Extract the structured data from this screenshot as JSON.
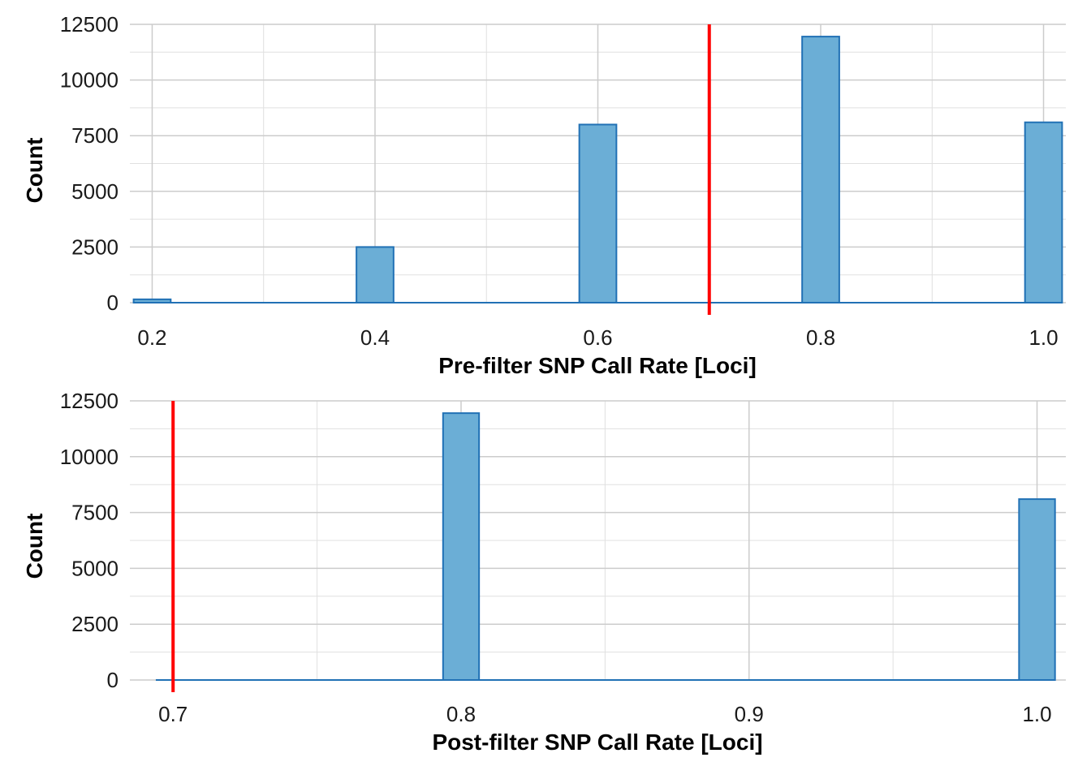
{
  "colors": {
    "bar_fill": "#6baed6",
    "bar_stroke": "#2171b5",
    "threshold": "#ff0000",
    "grid_major": "#cccccc",
    "grid_minor": "#e0e0e0"
  },
  "chart_data": [
    {
      "type": "bar",
      "xlabel": "Pre-filter SNP Call Rate [Loci]",
      "ylabel": "Count",
      "xlim": [
        0.18,
        1.02
      ],
      "ylim": [
        0,
        12500
      ],
      "x_ticks": [
        0.2,
        0.4,
        0.6,
        0.8,
        1.0
      ],
      "x_tick_labels": [
        "0.2",
        "0.4",
        "0.6",
        "0.8",
        "1.0"
      ],
      "y_ticks": [
        0,
        2500,
        5000,
        7500,
        10000,
        12500
      ],
      "y_tick_labels": [
        "0",
        "2500",
        "5000",
        "7500",
        "10000",
        "12500"
      ],
      "bin_width": 0.0333,
      "bins": [
        {
          "x": 0.2,
          "count": 150
        },
        {
          "x": 0.4,
          "count": 2500
        },
        {
          "x": 0.6,
          "count": 8000
        },
        {
          "x": 0.8,
          "count": 11950
        },
        {
          "x": 1.0,
          "count": 8100
        }
      ],
      "baseline": [
        0.183,
        1.017
      ],
      "threshold": 0.7,
      "grid": true
    },
    {
      "type": "bar",
      "xlabel": "Post-filter SNP Call Rate [Loci]",
      "ylabel": "Count",
      "xlim": [
        0.685,
        1.01
      ],
      "ylim": [
        0,
        12500
      ],
      "x_ticks": [
        0.7,
        0.8,
        0.9,
        1.0
      ],
      "x_tick_labels": [
        "0.7",
        "0.8",
        "0.9",
        "1.0"
      ],
      "y_ticks": [
        0,
        2500,
        5000,
        7500,
        10000,
        12500
      ],
      "y_tick_labels": [
        "0",
        "2500",
        "5000",
        "7500",
        "10000",
        "12500"
      ],
      "bin_width": 0.0125,
      "bins": [
        {
          "x": 0.8,
          "count": 11950
        },
        {
          "x": 1.0,
          "count": 8100
        }
      ],
      "baseline": [
        0.694,
        1.006
      ],
      "threshold": 0.7,
      "grid": true
    }
  ]
}
